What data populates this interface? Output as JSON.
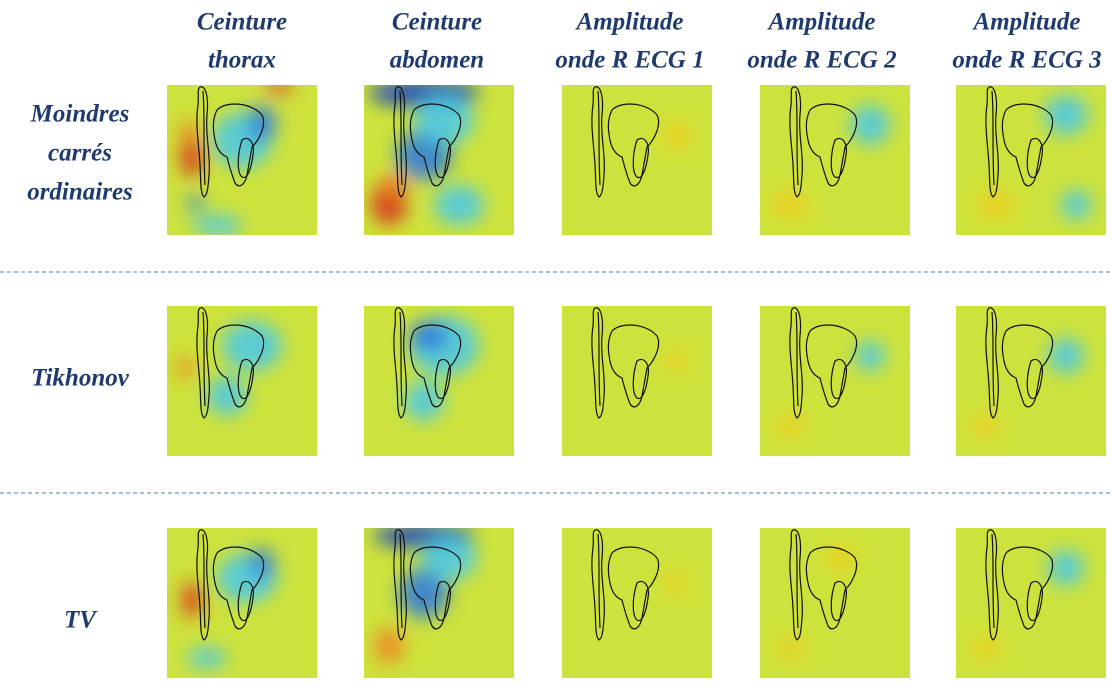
{
  "columns": [
    [
      "Ceinture",
      "thorax"
    ],
    [
      "Ceinture",
      "abdomen"
    ],
    [
      "Amplitude",
      "onde R ECG 1"
    ],
    [
      "Amplitude",
      "onde R ECG 2"
    ],
    [
      "Amplitude",
      "onde R ECG 3"
    ]
  ],
  "rows": [
    [
      "Moindres",
      "carrés",
      "ordinaires"
    ],
    [
      "Tikhonov"
    ],
    [
      "TV"
    ]
  ]
}
